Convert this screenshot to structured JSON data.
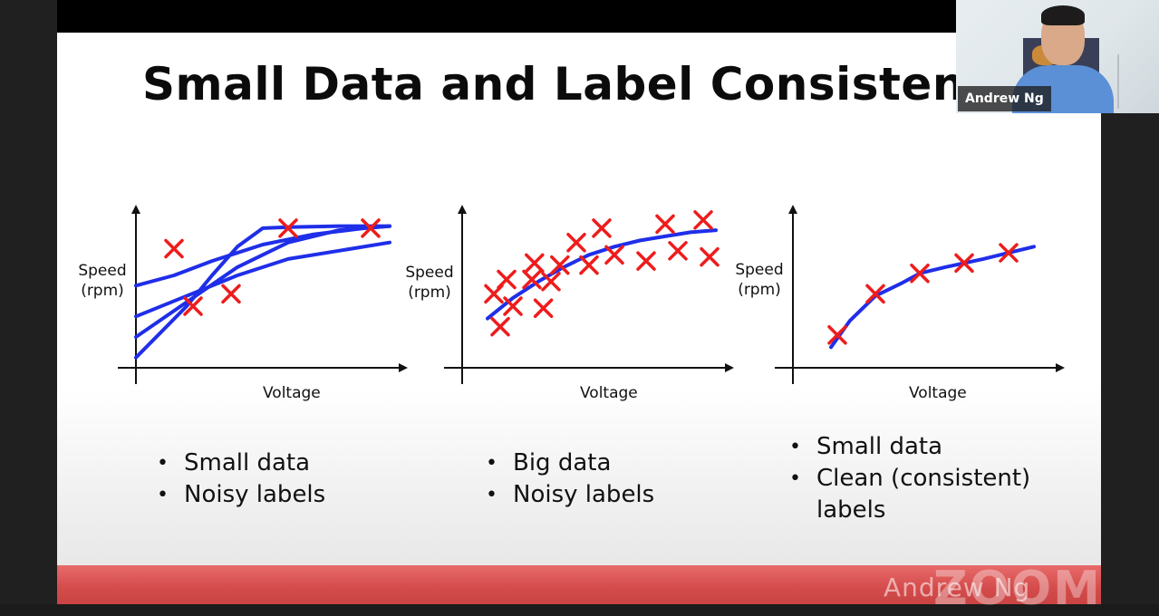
{
  "slide": {
    "title": "Small Data and Label Consistency",
    "colors": {
      "marker": "#ee1c1c",
      "curve": "#1f2ee8",
      "axis": "#111111",
      "footer": "#d44b4b"
    }
  },
  "panels": [
    {
      "ylabel_line1": "Speed",
      "ylabel_line2": "(rpm)",
      "xlabel": "Voltage",
      "bullets": [
        "Small data",
        "Noisy labels"
      ]
    },
    {
      "ylabel_line1": "Speed",
      "ylabel_line2": "(rpm)",
      "xlabel": "Voltage",
      "bullets": [
        "Big data",
        "Noisy labels"
      ]
    },
    {
      "ylabel_line1": "Speed",
      "ylabel_line2": "(rpm)",
      "xlabel": "Voltage",
      "bullets": [
        "Small data",
        "Clean (consistent)",
        "labels"
      ]
    }
  ],
  "chart_data": [
    {
      "type": "scatter",
      "xlabel": "Voltage",
      "ylabel": "Speed (rpm)",
      "axis_ticks": "none",
      "points": [
        [
          3,
          5.8
        ],
        [
          4.5,
          3.0
        ],
        [
          7.5,
          3.6
        ],
        [
          12,
          6.8
        ],
        [
          18.5,
          6.8
        ]
      ],
      "fits": [
        [
          [
            0,
            0.5
          ],
          [
            4,
            3
          ],
          [
            6,
            4.5
          ],
          [
            8,
            5.9
          ],
          [
            10,
            6.8
          ],
          [
            12,
            6.85
          ],
          [
            16,
            6.9
          ],
          [
            20,
            6.9
          ]
        ],
        [
          [
            0,
            4
          ],
          [
            3,
            4.5
          ],
          [
            6,
            5.2
          ],
          [
            10,
            6
          ],
          [
            14,
            6.5
          ],
          [
            18,
            6.8
          ],
          [
            20,
            6.9
          ]
        ],
        [
          [
            0,
            2.5
          ],
          [
            4,
            3.5
          ],
          [
            8,
            4.5
          ],
          [
            12,
            5.3
          ],
          [
            16,
            5.7
          ],
          [
            20,
            6.1
          ]
        ],
        [
          [
            0,
            1.5
          ],
          [
            4,
            3.2
          ],
          [
            8,
            4.9
          ],
          [
            12,
            6.1
          ],
          [
            16,
            6.7
          ],
          [
            20,
            6.9
          ]
        ]
      ]
    },
    {
      "type": "scatter",
      "xlabel": "Voltage",
      "ylabel": "Speed (rpm)",
      "axis_ticks": "none",
      "points": [
        [
          2.5,
          3.6
        ],
        [
          3,
          2.0
        ],
        [
          3.5,
          4.3
        ],
        [
          4,
          3.0
        ],
        [
          5.5,
          4.3
        ],
        [
          5.7,
          5.1
        ],
        [
          6.4,
          2.9
        ],
        [
          7,
          4.2
        ],
        [
          7.7,
          5.0
        ],
        [
          9,
          6.1
        ],
        [
          10,
          5.0
        ],
        [
          11,
          6.8
        ],
        [
          12,
          5.5
        ],
        [
          14.5,
          5.2
        ],
        [
          16,
          7.0
        ],
        [
          17,
          5.7
        ],
        [
          19,
          7.2
        ],
        [
          19.5,
          5.4
        ]
      ],
      "fits": [
        [
          [
            2,
            2.4
          ],
          [
            4,
            3.4
          ],
          [
            6,
            4.2
          ],
          [
            8,
            4.9
          ],
          [
            10,
            5.5
          ],
          [
            12,
            5.9
          ],
          [
            14,
            6.2
          ],
          [
            16,
            6.4
          ],
          [
            18,
            6.6
          ],
          [
            20,
            6.7
          ]
        ]
      ]
    },
    {
      "type": "scatter",
      "xlabel": "Voltage",
      "ylabel": "Speed (rpm)",
      "axis_ticks": "none",
      "points": [
        [
          3.5,
          1.6
        ],
        [
          6.5,
          3.6
        ],
        [
          10,
          4.6
        ],
        [
          13.5,
          5.1
        ],
        [
          17,
          5.6
        ]
      ],
      "fits": [
        [
          [
            3,
            1.0
          ],
          [
            4.5,
            2.3
          ],
          [
            6.5,
            3.5
          ],
          [
            8.5,
            4.1
          ],
          [
            10,
            4.6
          ],
          [
            12,
            4.9
          ],
          [
            13.5,
            5.1
          ],
          [
            15,
            5.3
          ],
          [
            17,
            5.6
          ],
          [
            19,
            5.9
          ]
        ]
      ]
    }
  ],
  "webcam": {
    "name": "Andrew Ng"
  },
  "watermark": {
    "text": "Andrew Ng",
    "brand": "ZOOM"
  }
}
